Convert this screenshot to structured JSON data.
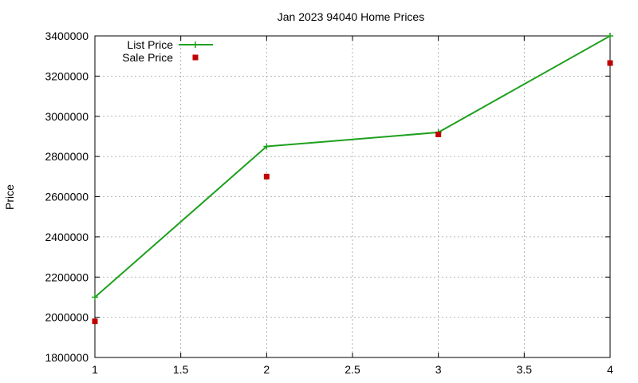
{
  "chart_data": {
    "type": "line",
    "title": "Jan 2023 94040 Home Prices",
    "xlabel": "",
    "ylabel": "Price",
    "xlim": [
      1,
      4
    ],
    "ylim": [
      1800000,
      3400000
    ],
    "x_ticks": [
      "1",
      "1.5",
      "2",
      "2.5",
      "3",
      "3.5",
      "4"
    ],
    "y_ticks": [
      "1800000",
      "2000000",
      "2200000",
      "2400000",
      "2600000",
      "2800000",
      "3000000",
      "3200000",
      "3400000"
    ],
    "grid": true,
    "legend_position": "top-left",
    "series": [
      {
        "name": "List Price",
        "style": "lines+points",
        "marker": "plus",
        "color": "#1ea01e",
        "x": [
          1,
          2,
          3,
          4
        ],
        "y": [
          2100000,
          2850000,
          2920000,
          3400000
        ]
      },
      {
        "name": "Sale Price",
        "style": "points",
        "marker": "square",
        "color": "#c00000",
        "x": [
          1,
          2,
          3,
          4
        ],
        "y": [
          1980000,
          2700000,
          2910000,
          3265000
        ]
      }
    ]
  }
}
